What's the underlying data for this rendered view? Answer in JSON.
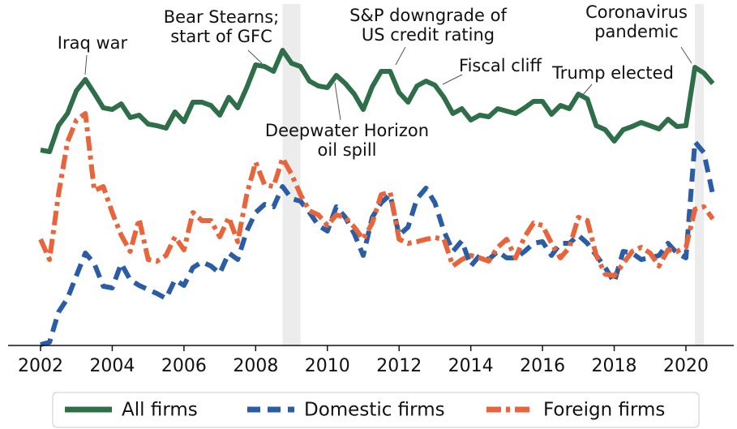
{
  "chart_data": {
    "type": "line",
    "x": [
      2002,
      2002.25,
      2002.5,
      2002.75,
      2003,
      2003.25,
      2003.5,
      2003.75,
      2004,
      2004.25,
      2004.5,
      2004.75,
      2005,
      2005.25,
      2005.5,
      2005.75,
      2006,
      2006.25,
      2006.5,
      2006.75,
      2007,
      2007.25,
      2007.5,
      2007.75,
      2008,
      2008.25,
      2008.5,
      2008.75,
      2009,
      2009.25,
      2009.5,
      2009.75,
      2010,
      2010.25,
      2010.5,
      2010.75,
      2011,
      2011.25,
      2011.5,
      2011.75,
      2012,
      2012.25,
      2012.5,
      2012.75,
      2013,
      2013.25,
      2013.5,
      2013.75,
      2014,
      2014.25,
      2014.5,
      2014.75,
      2015,
      2015.25,
      2015.5,
      2015.75,
      2016,
      2016.25,
      2016.5,
      2016.75,
      2017,
      2017.25,
      2017.5,
      2017.75,
      2018,
      2018.25,
      2018.5,
      2018.75,
      2019,
      2019.25,
      2019.5,
      2019.75,
      2020,
      2020.25,
      2020.5,
      2020.75
    ],
    "series": [
      {
        "name": "All firms",
        "color": "#2e6e48",
        "dash": "solid",
        "values": [
          241,
          239,
          271,
          286,
          314,
          328,
          311,
          293,
          291,
          298,
          281,
          284,
          273,
          271,
          268,
          288,
          276,
          300,
          300,
          296,
          284,
          306,
          293,
          318,
          346,
          344,
          338,
          364,
          348,
          344,
          326,
          320,
          318,
          333,
          323,
          310,
          291,
          319,
          338,
          338,
          312,
          300,
          320,
          326,
          321,
          306,
          286,
          292,
          278,
          284,
          282,
          292,
          289,
          286,
          293,
          301,
          301,
          285,
          296,
          292,
          310,
          304,
          271,
          266,
          252,
          266,
          270,
          275,
          271,
          267,
          279,
          270,
          271,
          343,
          336,
          323
        ]
      },
      {
        "name": "Domestic firms",
        "color": "#2a5da6",
        "dash": "dashed",
        "values": [
          1,
          4,
          41,
          58,
          86,
          114,
          101,
          73,
          71,
          101,
          81,
          74,
          69,
          64,
          58,
          81,
          74,
          96,
          103,
          98,
          89,
          114,
          106,
          141,
          164,
          174,
          171,
          196,
          181,
          178,
          164,
          148,
          141,
          171,
          158,
          138,
          111,
          158,
          176,
          186,
          136,
          146,
          181,
          194,
          176,
          141,
          116,
          129,
          98,
          111,
          106,
          116,
          108,
          108,
          116,
          126,
          128,
          111,
          126,
          126,
          136,
          126,
          111,
          96,
          78,
          116,
          114,
          106,
          108,
          111,
          126,
          114,
          108,
          251,
          238,
          186
        ]
      },
      {
        "name": "Foreign firms",
        "color": "#e8643a",
        "dash": "dashdot",
        "values": [
          131,
          106,
          186,
          251,
          278,
          286,
          191,
          196,
          164,
          136,
          116,
          156,
          106,
          104,
          111,
          134,
          118,
          164,
          154,
          154,
          134,
          158,
          128,
          186,
          226,
          198,
          196,
          231,
          211,
          186,
          166,
          161,
          148,
          161,
          158,
          146,
          131,
          151,
          186,
          189,
          131,
          126,
          128,
          131,
          133,
          131,
          98,
          106,
          111,
          108,
          104,
          121,
          131,
          108,
          134,
          151,
          148,
          126,
          108,
          121,
          158,
          154,
          111,
          88,
          86,
          101,
          116,
          121,
          114,
          98,
          118,
          116,
          121,
          168,
          171,
          156
        ]
      }
    ],
    "xlim": [
      2002,
      2020
    ],
    "xticks": [
      2002,
      2004,
      2006,
      2008,
      2010,
      2012,
      2014,
      2016,
      2018,
      2020
    ],
    "ylim": [
      0,
      380
    ],
    "shaded_periods": [
      [
        2008.75,
        2009.25
      ],
      [
        2020.25,
        2020.5
      ]
    ],
    "annotations": [
      {
        "lines": [
          "Iraq war"
        ]
      },
      {
        "lines": [
          "Bear Stearns;",
          "start of GFC"
        ]
      },
      {
        "lines": [
          "S&P downgrade of",
          "US credit rating"
        ]
      },
      {
        "lines": [
          "Fiscal cliff"
        ]
      },
      {
        "lines": [
          "Trump elected"
        ]
      },
      {
        "lines": [
          "Coronavirus",
          "pandemic"
        ]
      },
      {
        "lines": [
          "Deepwater Horizon",
          "oil spill"
        ]
      }
    ],
    "legend": "bottom"
  }
}
